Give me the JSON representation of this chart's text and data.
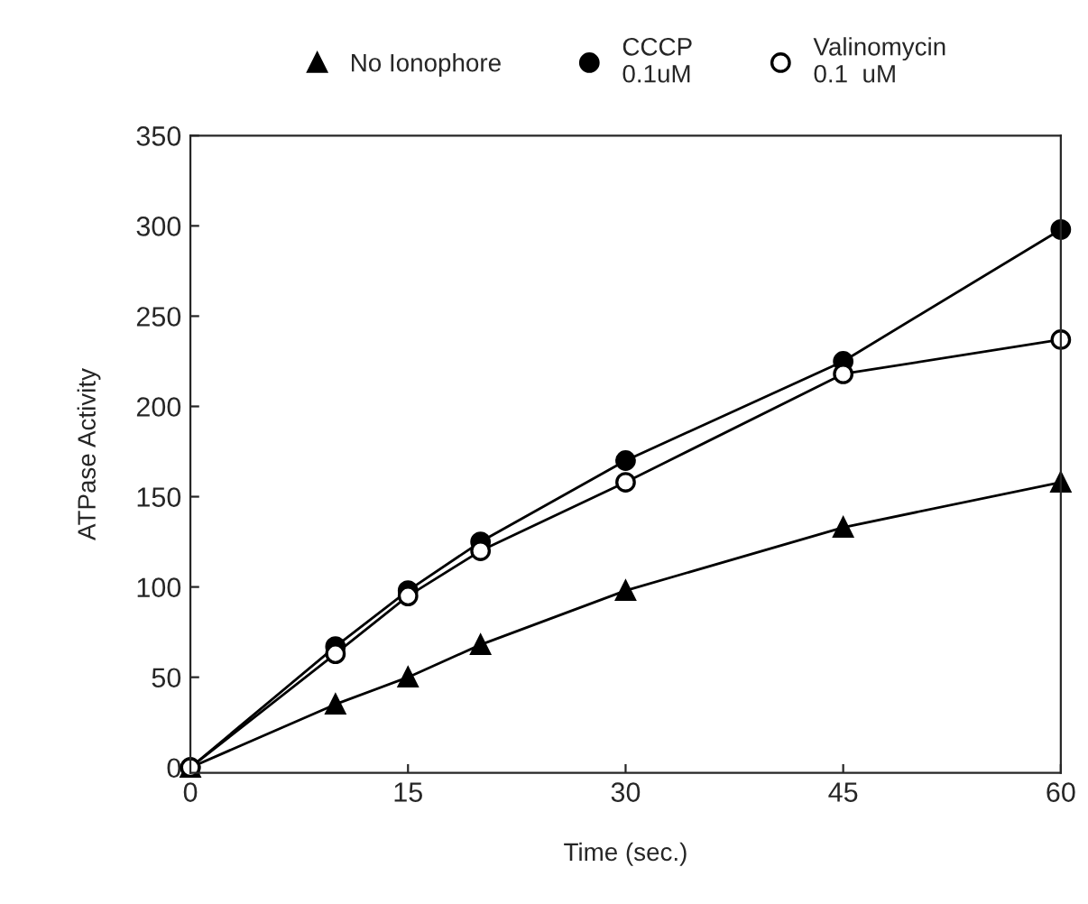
{
  "chart_data": {
    "type": "line",
    "xlabel": "Time (sec.)",
    "ylabel": "ATPase Activity",
    "x": [
      0,
      10,
      15,
      20,
      30,
      45,
      60
    ],
    "series": [
      {
        "name": "No Ionophore",
        "color": "#000000",
        "marker": "triangle",
        "values": [
          0,
          35,
          50,
          68,
          98,
          133,
          158
        ]
      },
      {
        "name": "CCCP\n0.1uM",
        "color": "#000000",
        "marker": "circle",
        "values": [
          0,
          67,
          98,
          125,
          170,
          225,
          298
        ]
      },
      {
        "name": "Valinomycin\n0.1  uM",
        "color": "#000000",
        "marker": "circle",
        "values": [
          0,
          63,
          95,
          120,
          158,
          218,
          237
        ]
      }
    ],
    "xlim": [
      0,
      60
    ],
    "ylim": [
      -3,
      350
    ],
    "xticks": [
      0,
      15,
      30,
      45,
      60
    ],
    "yticks": [
      0,
      50,
      100,
      150,
      200,
      250,
      300,
      350
    ],
    "grid": false,
    "legend": "top",
    "line_style": "solid"
  }
}
